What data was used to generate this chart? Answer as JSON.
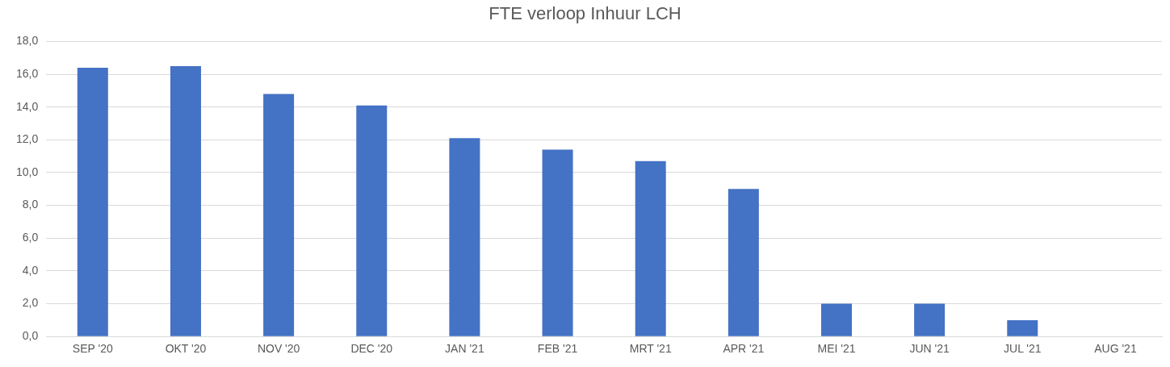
{
  "chart_data": {
    "type": "bar",
    "title": "FTE verloop Inhuur LCH",
    "categories": [
      "SEP '20",
      "OKT '20",
      "NOV '20",
      "DEC '20",
      "JAN '21",
      "FEB '21",
      "MRT '21",
      "APR '21",
      "MEI '21",
      "JUN '21",
      "JUL '21",
      "AUG '21"
    ],
    "values": [
      16.4,
      16.5,
      14.8,
      14.1,
      12.1,
      11.4,
      10.7,
      9.0,
      2.0,
      2.0,
      1.0,
      0
    ],
    "color": "#4472c4",
    "ylim": [
      0,
      18
    ],
    "yticks": [
      {
        "value": 0,
        "label": "0,0"
      },
      {
        "value": 2,
        "label": "2,0"
      },
      {
        "value": 4,
        "label": "4,0"
      },
      {
        "value": 6,
        "label": "6,0"
      },
      {
        "value": 8,
        "label": "8,0"
      },
      {
        "value": 10,
        "label": "10,0"
      },
      {
        "value": 12,
        "label": "12,0"
      },
      {
        "value": 14,
        "label": "14,0"
      },
      {
        "value": 16,
        "label": "16,0"
      },
      {
        "value": 18,
        "label": "18,0"
      }
    ],
    "grid": "y"
  }
}
